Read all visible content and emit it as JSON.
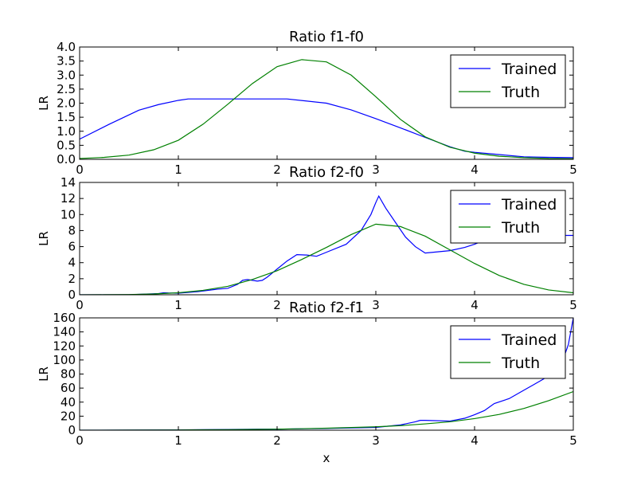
{
  "chart_data": [
    {
      "type": "line",
      "title": "Ratio f1-f0",
      "xlabel": "",
      "ylabel": "LR",
      "xlim": [
        0,
        5
      ],
      "ylim": [
        0,
        4
      ],
      "xticks": [
        "0",
        "1",
        "2",
        "3",
        "4",
        "5"
      ],
      "yticks": [
        "0.0",
        "0.5",
        "1.0",
        "1.5",
        "2.0",
        "2.5",
        "3.0",
        "3.5",
        "4.0"
      ],
      "legend_position": "top-right",
      "grid": false,
      "series": [
        {
          "name": "Trained",
          "color": "#0000ff",
          "x": [
            0,
            0.3,
            0.6,
            0.8,
            1.0,
            1.1,
            1.5,
            2.0,
            2.1,
            2.5,
            2.75,
            3.0,
            3.25,
            3.5,
            3.75,
            3.9,
            4.0,
            4.25,
            4.5,
            4.75,
            5.0
          ],
          "y": [
            0.72,
            1.25,
            1.75,
            1.95,
            2.1,
            2.15,
            2.15,
            2.15,
            2.15,
            2.0,
            1.76,
            1.45,
            1.12,
            0.78,
            0.45,
            0.29,
            0.25,
            0.17,
            0.09,
            0.07,
            0.06
          ]
        },
        {
          "name": "Truth",
          "color": "#008000",
          "x": [
            0,
            0.25,
            0.5,
            0.75,
            1.0,
            1.25,
            1.5,
            1.75,
            2.0,
            2.25,
            2.5,
            2.75,
            3.0,
            3.25,
            3.5,
            3.75,
            4.0,
            4.25,
            4.5,
            4.75,
            5.0
          ],
          "y": [
            0.03,
            0.07,
            0.15,
            0.34,
            0.68,
            1.25,
            1.96,
            2.7,
            3.3,
            3.55,
            3.47,
            3.0,
            2.23,
            1.42,
            0.8,
            0.43,
            0.22,
            0.11,
            0.06,
            0.03,
            0.02
          ]
        }
      ]
    },
    {
      "type": "line",
      "title": "Ratio f2-f0",
      "xlabel": "",
      "ylabel": "LR",
      "xlim": [
        0,
        5
      ],
      "ylim": [
        0,
        14
      ],
      "xticks": [
        "0",
        "1",
        "2",
        "3",
        "4",
        "5"
      ],
      "yticks": [
        "0",
        "2",
        "4",
        "6",
        "8",
        "10",
        "12",
        "14"
      ],
      "legend_position": "top-right",
      "grid": false,
      "series": [
        {
          "name": "Trained",
          "color": "#0000ff",
          "x": [
            0,
            0.5,
            0.8,
            0.85,
            0.9,
            1.0,
            1.2,
            1.4,
            1.5,
            1.6,
            1.65,
            1.7,
            1.75,
            1.8,
            1.85,
            1.9,
            2.0,
            2.1,
            2.2,
            2.3,
            2.4,
            2.5,
            2.7,
            2.85,
            2.95,
            3.0,
            3.03,
            3.1,
            3.2,
            3.3,
            3.4,
            3.5,
            3.75,
            3.9,
            4.0,
            4.1,
            4.2,
            4.5,
            5.0
          ],
          "y": [
            0.0,
            0.0,
            0.15,
            0.25,
            0.22,
            0.2,
            0.4,
            0.7,
            0.8,
            1.3,
            1.8,
            1.9,
            1.8,
            1.7,
            1.8,
            2.2,
            3.2,
            4.2,
            5.0,
            4.95,
            4.8,
            5.3,
            6.3,
            8.0,
            10.0,
            11.5,
            12.3,
            10.8,
            9.0,
            7.2,
            6.0,
            5.2,
            5.5,
            5.9,
            6.3,
            6.8,
            7.0,
            7.4,
            7.4
          ]
        },
        {
          "name": "Truth",
          "color": "#008000",
          "x": [
            0,
            0.25,
            0.5,
            0.75,
            1.0,
            1.25,
            1.5,
            1.75,
            2.0,
            2.25,
            2.5,
            2.75,
            3.0,
            3.25,
            3.5,
            3.75,
            4.0,
            4.25,
            4.5,
            4.75,
            5.0
          ],
          "y": [
            0.0,
            0.01,
            0.03,
            0.1,
            0.25,
            0.55,
            1.05,
            1.9,
            3.0,
            4.4,
            5.9,
            7.5,
            8.8,
            8.5,
            7.3,
            5.6,
            3.9,
            2.4,
            1.3,
            0.6,
            0.25
          ]
        }
      ]
    },
    {
      "type": "line",
      "title": "Ratio f2-f1",
      "xlabel": "x",
      "ylabel": "LR",
      "xlim": [
        0,
        5
      ],
      "ylim": [
        0,
        160
      ],
      "xticks": [
        "0",
        "1",
        "2",
        "3",
        "4",
        "5"
      ],
      "yticks": [
        "0",
        "20",
        "40",
        "60",
        "80",
        "100",
        "120",
        "140",
        "160"
      ],
      "legend_position": "top-right",
      "grid": false,
      "series": [
        {
          "name": "Trained",
          "color": "#0000ff",
          "x": [
            0,
            0.5,
            1.0,
            1.5,
            1.8,
            2.0,
            2.5,
            3.0,
            3.25,
            3.4,
            3.45,
            3.5,
            3.75,
            3.9,
            4.0,
            4.1,
            4.2,
            4.35,
            4.5,
            4.6,
            4.7,
            4.8,
            4.9,
            4.95,
            5.0
          ],
          "y": [
            0.0,
            0.2,
            0.5,
            1.0,
            1.5,
            1.5,
            2.5,
            4.0,
            7.5,
            12.0,
            14.0,
            14.0,
            13.0,
            17.0,
            22.0,
            28.0,
            38.0,
            45.0,
            57.0,
            65.0,
            73.0,
            85.0,
            102.0,
            122.0,
            160.0
          ]
        },
        {
          "name": "Truth",
          "color": "#008000",
          "x": [
            0,
            0.5,
            1.0,
            1.5,
            2.0,
            2.5,
            3.0,
            3.25,
            3.5,
            3.75,
            4.0,
            4.25,
            4.5,
            4.75,
            5.0
          ],
          "y": [
            0.0,
            0.1,
            0.3,
            0.8,
            1.5,
            2.8,
            4.8,
            6.5,
            9.0,
            12.0,
            16.5,
            22.5,
            31.0,
            42.0,
            55.0
          ]
        }
      ]
    }
  ]
}
